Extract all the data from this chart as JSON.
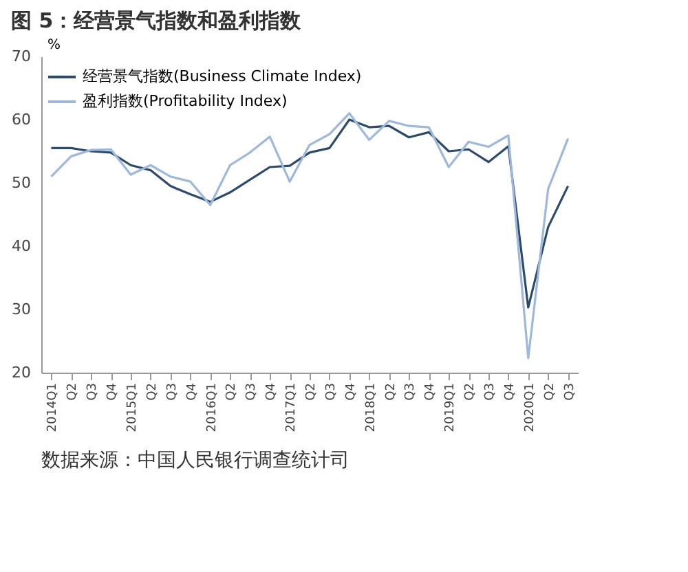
{
  "chart_data": {
    "type": "line",
    "title": "图 5：经营景气指数和盈利指数",
    "ylabel": "%",
    "categories": [
      "2014Q1",
      "Q2",
      "Q3",
      "Q4",
      "2015Q1",
      "Q2",
      "Q3",
      "Q4",
      "2016Q1",
      "Q2",
      "Q3",
      "Q4",
      "2017Q1",
      "Q2",
      "Q3",
      "Q4",
      "2018Q1",
      "Q2",
      "Q3",
      "Q4",
      "2019Q1",
      "Q2",
      "Q3",
      "Q4",
      "2020Q1",
      "Q2",
      "Q3"
    ],
    "series": [
      {
        "name": "经营景气指数(Business Climate Index)",
        "color": "#2e4a6b",
        "values": [
          55.5,
          55.5,
          55,
          54.8,
          52.8,
          52,
          49.5,
          48.2,
          47,
          48.5,
          50.5,
          52.5,
          52.7,
          54.8,
          55.5,
          60,
          58.8,
          59,
          57.2,
          58,
          55,
          55.3,
          53.3,
          55.8,
          30.3,
          43,
          49.5
        ]
      },
      {
        "name": "盈利指数(Profitability Index)",
        "color": "#9db8da",
        "values": [
          51,
          54.2,
          55.2,
          55.3,
          51.3,
          52.8,
          51,
          50.2,
          46.5,
          52.8,
          54.8,
          57.3,
          50.2,
          56,
          57.7,
          61,
          56.8,
          59.8,
          59,
          58.8,
          52.5,
          56.5,
          55.7,
          57.5,
          22.3,
          49,
          57
        ]
      }
    ],
    "ylim": [
      20,
      70
    ],
    "yticks": [
      20,
      30,
      40,
      50,
      60,
      70
    ],
    "grid": false,
    "legend": "top left",
    "marker": "none",
    "line_style": "solid",
    "annotations": [
      "数据来源：中国人民银行调查统计司"
    ]
  }
}
